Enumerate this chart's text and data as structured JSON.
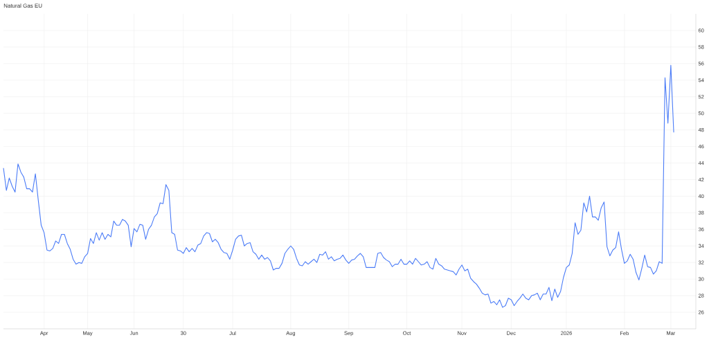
{
  "chart_data": {
    "type": "line",
    "title": "Natural Gas EU",
    "categories": [
      null,
      null,
      null,
      null,
      null,
      null,
      null,
      null,
      null,
      null,
      null,
      null,
      null,
      null,
      "Apr",
      null,
      null,
      null,
      null,
      null,
      null,
      null,
      null,
      null,
      null,
      null,
      null,
      null,
      null,
      "May",
      null,
      null,
      null,
      null,
      null,
      null,
      null,
      null,
      null,
      null,
      null,
      null,
      null,
      null,
      null,
      "Jun",
      null,
      null,
      null,
      null,
      null,
      null,
      null,
      null,
      null,
      null,
      null,
      null,
      null,
      null,
      null,
      null,
      "30",
      null,
      null,
      null,
      null,
      null,
      null,
      null,
      null,
      null,
      null,
      null,
      null,
      null,
      null,
      null,
      null,
      "Jul",
      null,
      null,
      null,
      null,
      null,
      null,
      null,
      null,
      null,
      null,
      null,
      null,
      null,
      null,
      null,
      null,
      null,
      null,
      null,
      "Aug",
      null,
      null,
      null,
      null,
      null,
      null,
      null,
      null,
      null,
      null,
      null,
      null,
      null,
      null,
      null,
      null,
      null,
      null,
      null,
      "Sep",
      null,
      null,
      null,
      null,
      null,
      null,
      null,
      null,
      null,
      null,
      null,
      null,
      null,
      null,
      null,
      null,
      null,
      null,
      null,
      "Oct",
      null,
      null,
      null,
      null,
      null,
      null,
      null,
      null,
      null,
      null,
      null,
      null,
      null,
      null,
      null,
      null,
      null,
      null,
      "Nov",
      null,
      null,
      null,
      null,
      null,
      null,
      null,
      null,
      null,
      null,
      null,
      null,
      null,
      null,
      null,
      null,
      "Dec",
      null,
      null,
      null,
      null,
      null,
      null,
      null,
      null,
      null,
      null,
      null,
      null,
      null,
      null,
      null,
      null,
      null,
      null,
      "2026",
      null,
      null,
      null,
      null,
      null,
      null,
      null,
      null,
      null,
      null,
      null,
      null,
      null,
      null,
      null,
      null,
      null,
      null,
      null,
      "Feb",
      null,
      null,
      null,
      null,
      null,
      null,
      null,
      null,
      null,
      null,
      null,
      null,
      null,
      null,
      null,
      "Mar",
      null
    ],
    "series": [
      {
        "color": "#4a7bf7",
        "values": [
          43.4,
          40.7,
          42.2,
          41.2,
          40.5,
          43.9,
          42.9,
          42.3,
          40.9,
          40.9,
          40.5,
          42.7,
          39.5,
          36.5,
          35.6,
          33.5,
          33.4,
          33.7,
          34.6,
          34.3,
          35.4,
          35.4,
          34.3,
          33.6,
          32.4,
          31.8,
          32.0,
          31.9,
          32.7,
          33.1,
          34.9,
          34.3,
          35.6,
          34.7,
          35.6,
          34.8,
          35.4,
          35.1,
          37.0,
          36.5,
          36.5,
          37.2,
          37.0,
          36.5,
          33.9,
          36.1,
          35.7,
          36.6,
          36.5,
          34.8,
          36.0,
          36.5,
          37.5,
          37.9,
          39.2,
          39.1,
          41.4,
          40.7,
          35.6,
          35.4,
          33.5,
          33.4,
          33.1,
          33.8,
          33.3,
          33.7,
          33.3,
          34.1,
          34.3,
          35.2,
          35.6,
          35.5,
          34.5,
          34.8,
          34.4,
          33.6,
          33.2,
          33.1,
          32.4,
          33.5,
          34.8,
          35.2,
          35.3,
          34.0,
          34.3,
          34.4,
          33.3,
          33.0,
          32.4,
          32.9,
          32.4,
          32.6,
          32.2,
          31.1,
          31.3,
          31.3,
          31.9,
          33.1,
          33.6,
          34.0,
          33.6,
          32.5,
          31.7,
          31.6,
          32.1,
          31.8,
          32.1,
          32.4,
          32.0,
          33.0,
          32.9,
          33.3,
          32.4,
          32.7,
          32.2,
          32.4,
          32.5,
          32.9,
          32.3,
          31.9,
          32.3,
          32.4,
          32.8,
          33.1,
          32.7,
          31.4,
          31.4,
          31.4,
          31.4,
          33.1,
          33.2,
          32.6,
          32.3,
          32.1,
          31.5,
          31.8,
          31.8,
          32.4,
          31.8,
          31.8,
          32.2,
          31.8,
          32.5,
          32.1,
          31.7,
          31.8,
          32.1,
          31.4,
          31.2,
          32.5,
          31.8,
          31.6,
          31.2,
          31.1,
          31.0,
          30.9,
          30.5,
          31.2,
          31.7,
          31.0,
          31.2,
          30.1,
          29.7,
          29.4,
          28.9,
          28.3,
          28.1,
          28.2,
          27.1,
          27.3,
          26.9,
          27.5,
          26.6,
          26.8,
          27.7,
          27.5,
          26.8,
          27.3,
          27.7,
          28.2,
          27.7,
          27.5,
          28.0,
          28.1,
          28.3,
          27.5,
          28.2,
          28.2,
          29.0,
          27.4,
          28.8,
          27.8,
          28.5,
          30.2,
          31.4,
          31.7,
          33.1,
          36.8,
          35.4,
          35.9,
          39.2,
          38.1,
          40.0,
          37.5,
          37.5,
          37.1,
          38.6,
          39.3,
          33.9,
          32.8,
          33.5,
          33.8,
          35.7,
          33.6,
          31.9,
          32.2,
          33.0,
          32.4,
          30.8,
          29.9,
          31.3,
          32.9,
          31.5,
          31.4,
          30.6,
          31.0,
          32.1,
          31.9,
          54.3,
          48.8,
          55.8,
          47.7
        ]
      }
    ],
    "ylim": [
      24,
      62
    ],
    "yticks": [
      26,
      28,
      30,
      32,
      34,
      36,
      38,
      40,
      42,
      44,
      46,
      48,
      50,
      52,
      54,
      56,
      58,
      60
    ],
    "grid": true
  }
}
